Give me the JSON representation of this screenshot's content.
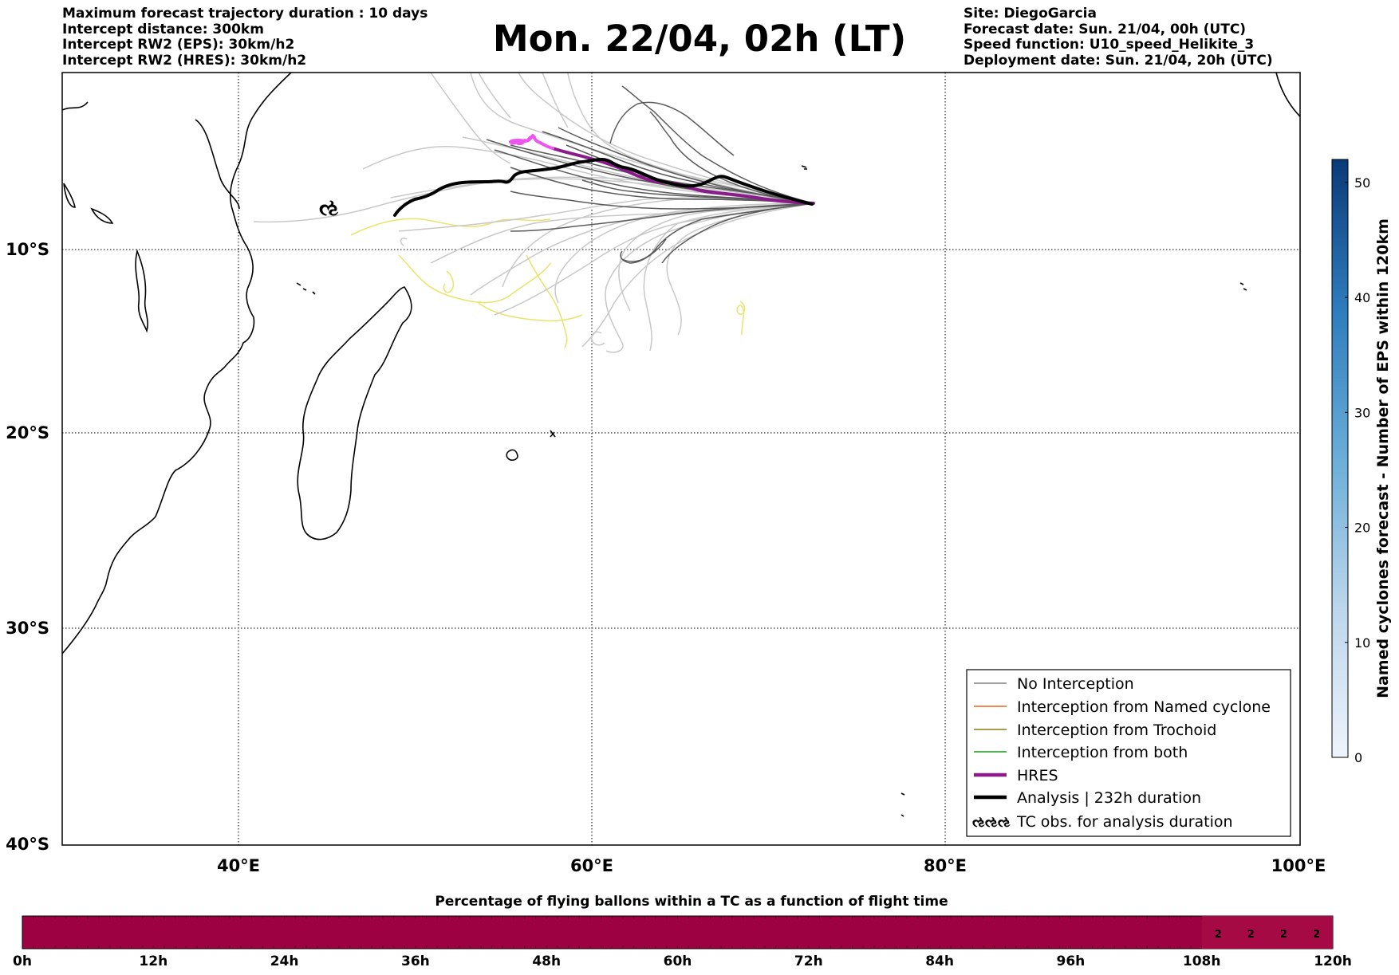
{
  "header": {
    "left": [
      "Maximum forecast trajectory duration : 10 days",
      "Intercept distance: 300km",
      "Intercept RW2 (EPS):  30km/h2",
      "Intercept RW2 (HRES): 30km/h2"
    ],
    "title": "Mon. 22/04, 02h (LT)",
    "right": [
      "Site: DiegoGarcia",
      "Forecast date: Sun. 21/04, 00h (UTC)",
      "Speed function: U10_speed_Helikite_3",
      "Deployment date: Sun. 21/04, 20h (UTC)"
    ]
  },
  "map": {
    "lon_labels": [
      "40°E",
      "60°E",
      "80°E",
      "100°E"
    ],
    "lat_labels": [
      "10°S",
      "20°S",
      "30°S",
      "40°S"
    ],
    "grid": "dotted",
    "colors": {
      "ensemble_light": "#c8c8c8",
      "ensemble_dark": "#5a5a5a",
      "tc_tracks": "#e8e46a",
      "hres": "#8b1a8b",
      "hres_start": "#ee55ee",
      "analysis": "#000000"
    }
  },
  "legend": {
    "placement": "lower-right",
    "items": [
      {
        "label": "No Interception",
        "color": "#808080",
        "style": "thin"
      },
      {
        "label": "Interception from Named cyclone",
        "color": "#e8601c",
        "style": "thin"
      },
      {
        "label": "Interception from Trochoid",
        "color": "#8a7a10",
        "style": "thin"
      },
      {
        "label": "Interception from both",
        "color": "#1a9a1a",
        "style": "thin"
      },
      {
        "label": "HRES",
        "color": "#8b1a8b",
        "style": "thick"
      },
      {
        "label": "Analysis | 232h duration",
        "color": "#000000",
        "style": "thick"
      },
      {
        "label": "TC obs. for analysis duration",
        "color": "#000000",
        "style": "symbol",
        "symbol": "ઌઌઌ"
      }
    ]
  },
  "colorbar_right": {
    "label": "Named cyclones forecast - Number of EPS within 120km",
    "ticks": [
      "0",
      "10",
      "20",
      "30",
      "40",
      "50"
    ],
    "min": 0,
    "max": 52,
    "colors": [
      "#eef4fb",
      "#0a3a78"
    ]
  },
  "bottom_bar": {
    "title": "Percentage of flying ballons within a TC as a function of flight time",
    "ticks": [
      "0h",
      "12h",
      "24h",
      "36h",
      "48h",
      "60h",
      "72h",
      "84h",
      "96h",
      "108h",
      "120h"
    ],
    "color": "#9e0142",
    "cell_values": [
      "2",
      "2",
      "2",
      "2"
    ]
  }
}
